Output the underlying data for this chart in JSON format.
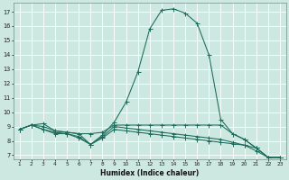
{
  "xlabel": "Humidex (Indice chaleur)",
  "bg_color": "#cce8e0",
  "line_color": "#1a6b5a",
  "grid_color": "#b8d8d0",
  "x_ticks": [
    1,
    2,
    3,
    4,
    5,
    6,
    7,
    8,
    9,
    10,
    11,
    12,
    13,
    14,
    15,
    16,
    17,
    18,
    19,
    20,
    21,
    22,
    23
  ],
  "y_ticks": [
    7,
    8,
    9,
    10,
    11,
    12,
    13,
    14,
    15,
    16,
    17
  ],
  "xlim": [
    0.5,
    23.5
  ],
  "ylim": [
    6.7,
    17.6
  ],
  "curve_main_x": [
    1,
    2,
    3,
    4,
    5,
    6,
    7,
    8,
    9,
    10,
    11,
    12,
    13,
    14,
    15,
    16,
    17,
    18,
    19,
    20,
    21,
    22,
    23
  ],
  "curve_main_y": [
    8.8,
    9.1,
    9.2,
    8.7,
    8.6,
    8.5,
    7.75,
    8.4,
    9.3,
    10.7,
    12.8,
    15.8,
    17.1,
    17.2,
    16.9,
    16.2,
    14.0,
    9.5,
    8.5,
    8.1,
    7.5,
    6.85,
    6.85
  ],
  "curve_flat_x": [
    1,
    2,
    3,
    4,
    5,
    6,
    7,
    8,
    9,
    10,
    11,
    12,
    13,
    14,
    15,
    16,
    17,
    18,
    19,
    20,
    21,
    22,
    23
  ],
  "curve_flat_y": [
    8.8,
    9.1,
    9.0,
    8.7,
    8.6,
    8.5,
    8.5,
    8.6,
    9.1,
    9.1,
    9.1,
    9.1,
    9.1,
    9.1,
    9.1,
    9.1,
    9.1,
    9.1,
    8.5,
    8.1,
    7.5,
    6.85,
    6.85
  ],
  "curve_dec1_x": [
    1,
    2,
    3,
    4,
    5,
    6,
    7,
    8,
    9,
    10,
    11,
    12,
    13,
    14,
    15,
    16,
    17,
    18,
    19,
    20,
    21,
    22,
    23
  ],
  "curve_dec1_y": [
    8.8,
    9.1,
    8.8,
    8.5,
    8.5,
    8.2,
    7.75,
    8.2,
    8.8,
    8.7,
    8.6,
    8.5,
    8.4,
    8.3,
    8.2,
    8.1,
    8.0,
    7.9,
    7.8,
    7.7,
    7.5,
    6.85,
    6.85
  ],
  "curve_dec2_x": [
    1,
    2,
    3,
    4,
    5,
    6,
    7,
    8,
    9,
    10,
    11,
    12,
    13,
    14,
    15,
    16,
    17,
    18,
    19,
    20,
    21,
    22,
    23
  ],
  "curve_dec2_y": [
    8.8,
    9.1,
    8.8,
    8.6,
    8.5,
    8.3,
    7.75,
    8.3,
    9.0,
    8.9,
    8.8,
    8.7,
    8.6,
    8.5,
    8.4,
    8.3,
    8.2,
    8.1,
    7.9,
    7.7,
    7.3,
    6.85,
    6.85
  ]
}
